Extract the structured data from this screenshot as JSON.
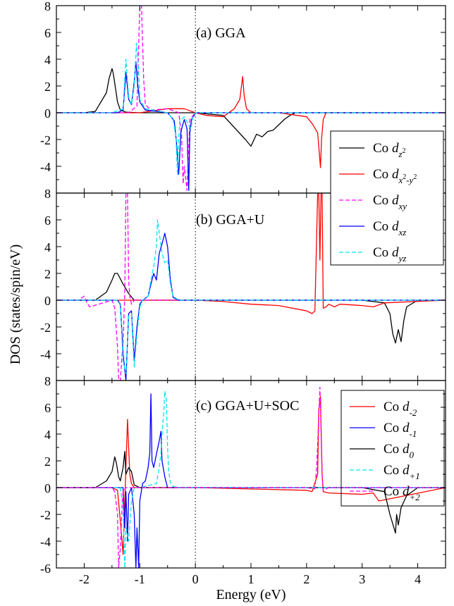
{
  "figure": {
    "ylabel": "DOS (states/spin/eV)",
    "xlabel": "Energy (eV)"
  },
  "chart_data": [
    {
      "type": "line",
      "title": "(a) GGA",
      "xlim": [
        -2.5,
        4.5
      ],
      "ylim": [
        -6,
        8
      ],
      "x_ticks": [
        -2,
        -1,
        0,
        1,
        2,
        3,
        4
      ],
      "y_ticks": [
        -4,
        -2,
        0,
        2,
        4,
        6,
        8
      ],
      "legend_placement": "lower-right",
      "series": [
        {
          "name": "Co d_z²",
          "legend_main": "Co ",
          "legend_d": "d",
          "legend_sub": "z",
          "legend_sup": "2",
          "color": "#000000",
          "dash": "solid",
          "x": [
            -2.5,
            -2.0,
            -1.8,
            -1.6,
            -1.55,
            -1.52,
            -1.5,
            -1.48,
            -1.45,
            -1.4,
            -1.35,
            -1.25,
            -1.0,
            -0.5,
            0.0,
            0.5,
            0.9,
            1.0,
            1.1,
            1.2,
            1.3,
            1.4,
            1.5,
            1.6,
            1.7,
            1.8,
            2.0,
            4.5
          ],
          "y": [
            0,
            0,
            0.1,
            1.5,
            2.6,
            3.0,
            3.3,
            3.0,
            2.2,
            0.8,
            0.2,
            0.05,
            0,
            0,
            0,
            -0.2,
            -2.0,
            -2.5,
            -1.6,
            -1.8,
            -1.4,
            -1.3,
            -0.9,
            -0.5,
            -0.2,
            0,
            0,
            0
          ]
        },
        {
          "name": "Co d_x²-y²",
          "legend_main": "Co ",
          "legend_d": "d",
          "legend_sub": "x",
          "legend_sup": "2",
          "legend_sub2": "-y",
          "legend_sup2": "2",
          "color": "#ff0000",
          "dash": "solid",
          "x": [
            -2.5,
            -1.0,
            -0.5,
            -0.2,
            0.0,
            0.2,
            0.5,
            0.7,
            0.8,
            0.85,
            0.88,
            0.92,
            1.0,
            1.2,
            1.5,
            2.0,
            2.1,
            2.2,
            2.25,
            2.27,
            2.3,
            2.35,
            2.4,
            4.5
          ],
          "y": [
            0,
            0,
            0.3,
            0.3,
            0,
            -0.2,
            -0.3,
            0.3,
            1.0,
            2.7,
            1.2,
            0.3,
            0,
            0,
            0,
            -0.3,
            -0.8,
            -1.5,
            -4.1,
            -2.0,
            -0.5,
            0,
            0,
            0
          ]
        },
        {
          "name": "Co d_xy",
          "legend_main": "Co ",
          "legend_d": "d",
          "legend_sub": "xy",
          "color": "#ff00ff",
          "dash": "dashed",
          "x": [
            -2.5,
            -1.2,
            -1.05,
            -1.0,
            -0.97,
            -0.93,
            -0.9,
            -0.8,
            -0.5,
            -0.3,
            -0.25,
            -0.22,
            -0.2,
            -0.15,
            -0.1,
            0.0,
            0.5,
            4.5
          ],
          "y": [
            0,
            0,
            0.5,
            8.0,
            8.0,
            2.5,
            0.6,
            0.2,
            0.3,
            0,
            -1.5,
            -5.3,
            -4.0,
            -5.8,
            -0.5,
            0,
            0,
            0
          ]
        },
        {
          "name": "Co d_xz",
          "legend_main": "Co ",
          "legend_d": "d",
          "legend_sub": "xz",
          "color": "#0000ff",
          "dash": "solid",
          "x": [
            -2.5,
            -1.4,
            -1.3,
            -1.25,
            -1.2,
            -1.15,
            -1.1,
            -1.07,
            -1.04,
            -1.0,
            -0.9,
            -0.5,
            -0.38,
            -0.34,
            -0.3,
            -0.26,
            -0.2,
            -0.15,
            -0.12,
            -0.1,
            -0.07,
            -0.02,
            0.0,
            4.5
          ],
          "y": [
            0,
            0,
            0.2,
            3.0,
            1.0,
            0.6,
            2.3,
            3.8,
            2.2,
            0.8,
            0.2,
            0,
            -0.6,
            -2.2,
            -4.6,
            -1.4,
            -0.5,
            -1.2,
            -5.8,
            -1.5,
            -0.5,
            -0.2,
            0,
            0
          ]
        },
        {
          "name": "Co d_yz",
          "legend_main": "Co ",
          "legend_d": "d",
          "legend_sub": "yz",
          "color": "#00e5ee",
          "dash": "dashed",
          "x": [
            -2.5,
            -1.5,
            -1.3,
            -1.25,
            -1.2,
            -1.15,
            -1.1,
            -1.06,
            -1.02,
            -1.0,
            -0.9,
            -0.5,
            -0.4,
            -0.35,
            -0.32,
            -0.3,
            -0.28,
            -0.2,
            -0.08,
            -0.05,
            0.0,
            4.5
          ],
          "y": [
            0,
            0,
            0.3,
            4.0,
            1.2,
            0.6,
            2.0,
            5.2,
            3.0,
            1.0,
            0.3,
            0,
            -0.5,
            -1.8,
            -4.7,
            -2.0,
            -0.6,
            -0.3,
            -1.2,
            -0.4,
            0,
            0
          ]
        }
      ]
    },
    {
      "type": "line",
      "title": "(b) GGA+U",
      "xlim": [
        -2.5,
        4.5
      ],
      "ylim": [
        -6,
        8
      ],
      "x_ticks": [
        -2,
        -1,
        0,
        1,
        2,
        3,
        4
      ],
      "y_ticks": [
        -4,
        -2,
        0,
        2,
        4,
        6,
        8
      ],
      "series": [
        {
          "name": "Co d_z²",
          "color": "#000000",
          "dash": "solid",
          "x": [
            -2.5,
            -1.8,
            -1.6,
            -1.5,
            -1.45,
            -1.4,
            -1.3,
            -1.2,
            -1.1,
            0.0,
            3.0,
            3.4,
            3.5,
            3.55,
            3.6,
            3.65,
            3.7,
            3.75,
            3.8,
            4.0,
            4.5
          ],
          "y": [
            0,
            0,
            0.6,
            1.5,
            2.0,
            2.0,
            1.2,
            0.5,
            0,
            0,
            0,
            -0.2,
            -1.0,
            -2.5,
            -3.2,
            -2.2,
            -3.1,
            -1.5,
            -0.5,
            0,
            0
          ]
        },
        {
          "name": "Co d_x²-y²",
          "color": "#ff0000",
          "dash": "solid",
          "x": [
            -2.5,
            0.0,
            0.5,
            1.0,
            1.5,
            2.0,
            2.1,
            2.15,
            2.2,
            2.22,
            2.24,
            2.26,
            2.28,
            2.3,
            2.35,
            2.4,
            2.5,
            2.6,
            3.0,
            3.2,
            3.4,
            4.5
          ],
          "y": [
            0,
            0,
            -0.1,
            -0.3,
            -0.4,
            -0.8,
            -1.0,
            -0.8,
            8.0,
            8.0,
            3.0,
            8.0,
            8.0,
            -0.6,
            -0.5,
            -0.3,
            -0.5,
            -0.3,
            -0.4,
            -0.5,
            -0.2,
            0
          ]
        },
        {
          "name": "Co d_xy",
          "color": "#ff00ff",
          "dash": "dashed",
          "x": [
            -2.5,
            -2.1,
            -2.0,
            -1.95,
            -1.9,
            -1.5,
            -1.45,
            -1.4,
            -1.38,
            -1.35,
            -1.3,
            -1.27,
            -1.25,
            -1.22,
            -1.2,
            -1.18,
            -1.15,
            -1.1,
            -1.0,
            0.0,
            4.5
          ],
          "y": [
            0,
            0,
            0.3,
            -0.2,
            -0.5,
            0,
            -0.6,
            -3.5,
            -6.0,
            -6.0,
            -3.0,
            0.5,
            8.0,
            8.0,
            1.5,
            0.3,
            -0.3,
            0,
            0,
            0,
            0
          ]
        },
        {
          "name": "Co d_xz",
          "color": "#0000ff",
          "dash": "solid",
          "x": [
            -2.5,
            -1.4,
            -1.35,
            -1.3,
            -1.25,
            -1.2,
            -1.15,
            -1.1,
            -1.05,
            -1.0,
            -0.95,
            -0.85,
            -0.8,
            -0.75,
            -0.7,
            -0.65,
            -0.6,
            -0.55,
            -0.5,
            -0.45,
            -0.4,
            -0.3,
            4.5
          ],
          "y": [
            0,
            0,
            -0.3,
            -4.0,
            -6.0,
            -1.0,
            -0.8,
            -4.5,
            -2.0,
            -0.3,
            0,
            0.3,
            1.2,
            2.0,
            1.5,
            3.5,
            4.2,
            5.0,
            4.0,
            1.5,
            0.2,
            0,
            0
          ]
        },
        {
          "name": "Co d_yz",
          "color": "#00e5ee",
          "dash": "dashed",
          "x": [
            -2.5,
            -1.4,
            -1.35,
            -1.3,
            -1.25,
            -1.2,
            -1.15,
            -1.1,
            -1.05,
            -1.0,
            -0.95,
            -0.85,
            -0.8,
            -0.75,
            -0.7,
            -0.68,
            -0.65,
            -0.6,
            -0.55,
            -0.5,
            -0.45,
            -0.4,
            -0.3,
            4.5
          ],
          "y": [
            0,
            0,
            -0.4,
            -4.5,
            -5.5,
            -1.2,
            -1.0,
            -5.0,
            -2.5,
            -0.5,
            0,
            0.3,
            1.5,
            2.5,
            4.0,
            6.0,
            5.0,
            3.5,
            2.8,
            3.0,
            1.2,
            0.3,
            0,
            0
          ]
        }
      ]
    },
    {
      "type": "line",
      "title": "(c) GGA+U+SOC",
      "xlim": [
        -2.5,
        4.5
      ],
      "ylim": [
        -6,
        8
      ],
      "x_ticks": [
        -2,
        -1,
        0,
        1,
        2,
        3,
        4
      ],
      "x_tick_labels": [
        "-2",
        "-1",
        "0",
        "1",
        "2",
        "3",
        "4"
      ],
      "y_ticks": [
        -6,
        -4,
        -2,
        0,
        2,
        4,
        6,
        8
      ],
      "y_tick_labels": [
        "-6",
        "-4",
        "-2",
        "0",
        "2",
        "4",
        "6",
        "8"
      ],
      "legend_placement": "right",
      "series": [
        {
          "name": "Co d_-2",
          "legend_main": "Co ",
          "legend_d": "d",
          "legend_sub": "-2",
          "color": "#ff0000",
          "dash": "solid",
          "x": [
            -2.5,
            -1.5,
            -1.4,
            -1.35,
            -1.3,
            -1.25,
            -1.22,
            -1.2,
            -1.18,
            -1.15,
            -1.1,
            -1.0,
            0.0,
            2.0,
            2.1,
            2.2,
            2.22,
            2.25,
            2.28,
            2.3,
            2.4,
            3.0,
            3.2,
            3.3,
            4.5
          ],
          "y": [
            0,
            0,
            -0.2,
            -2.5,
            -5.0,
            1.5,
            5.1,
            3.0,
            1.0,
            0.3,
            0,
            0,
            0,
            -0.2,
            -0.3,
            1.0,
            5.8,
            6.8,
            1.0,
            -0.3,
            -0.4,
            -0.5,
            -0.4,
            -1.0,
            0
          ]
        },
        {
          "name": "Co d_-1",
          "legend_main": "Co ",
          "legend_d": "d",
          "legend_sub": "-1",
          "color": "#0000ff",
          "dash": "solid",
          "x": [
            -2.5,
            -1.3,
            -1.27,
            -1.25,
            -1.22,
            -1.2,
            -1.15,
            -1.1,
            -1.07,
            -1.05,
            -1.02,
            -1.0,
            -0.95,
            -0.9,
            -0.85,
            -0.82,
            -0.8,
            -0.78,
            -0.75,
            -0.7,
            -0.65,
            -0.62,
            -0.6,
            -0.55,
            -0.5,
            0.0,
            4.5
          ],
          "y": [
            0,
            0,
            -3.0,
            -0.3,
            -4.0,
            -0.5,
            0,
            -2.0,
            -6.0,
            -3.0,
            -6.0,
            -1.0,
            0.3,
            0.5,
            1.5,
            2.6,
            7.0,
            2.0,
            1.5,
            2.5,
            3.5,
            4.2,
            2.0,
            0.8,
            0,
            0,
            0
          ]
        },
        {
          "name": "Co d_0",
          "legend_main": "Co ",
          "legend_d": "d",
          "legend_sub": "0",
          "color": "#000000",
          "dash": "solid",
          "x": [
            -2.5,
            -1.8,
            -1.6,
            -1.5,
            -1.45,
            -1.42,
            -1.38,
            -1.35,
            -1.3,
            -1.27,
            -1.25,
            -1.2,
            -1.15,
            -1.1,
            -1.0,
            0.0,
            3.0,
            3.4,
            3.5,
            3.55,
            3.6,
            3.62,
            3.65,
            3.7,
            3.8,
            4.0,
            4.5
          ],
          "y": [
            0,
            0,
            0.5,
            1.2,
            2.3,
            1.8,
            0.8,
            0.5,
            1.5,
            2.7,
            1.0,
            1.5,
            1.2,
            0.2,
            0,
            0,
            0,
            -0.3,
            -2.0,
            -2.7,
            -3.4,
            -2.0,
            -2.8,
            -1.5,
            -0.6,
            0,
            0
          ]
        },
        {
          "name": "Co d_+1",
          "legend_main": "Co ",
          "legend_d": "d",
          "legend_sub": "+1",
          "color": "#00e5ee",
          "dash": "dashed",
          "x": [
            -2.5,
            -1.35,
            -1.3,
            -1.27,
            -1.25,
            -1.2,
            -1.15,
            -1.1,
            -1.0,
            -0.7,
            -0.65,
            -0.62,
            -0.6,
            -0.57,
            -0.55,
            -0.52,
            -0.5,
            -0.48,
            -0.45,
            -0.4,
            -0.3,
            0.0,
            4.5
          ],
          "y": [
            0,
            0,
            -1.5,
            -6.0,
            -3.0,
            -4.0,
            -1.0,
            0,
            0,
            0.3,
            1.5,
            2.5,
            4.0,
            5.5,
            7.2,
            6.5,
            3.0,
            1.2,
            0.4,
            0.1,
            0,
            0,
            0
          ]
        },
        {
          "name": "Co d_+2",
          "legend_main": "Co ",
          "legend_d": "d",
          "legend_sub": "+2",
          "color": "#ff00ff",
          "dash": "dashed",
          "x": [
            -2.5,
            -1.5,
            -1.45,
            -1.4,
            -1.38,
            -1.35,
            -1.32,
            -1.3,
            -1.25,
            -1.2,
            -1.1,
            0.0,
            2.0,
            2.15,
            2.18,
            2.2,
            2.22,
            2.24,
            2.25,
            2.28,
            2.3,
            2.4,
            4.5
          ],
          "y": [
            0,
            0,
            -0.3,
            -2.0,
            -6.0,
            -4.5,
            -1.5,
            -0.3,
            0,
            0,
            0,
            0,
            0,
            -0.1,
            1.5,
            3.2,
            5.5,
            7.5,
            6.0,
            1.0,
            -0.2,
            0,
            0
          ]
        }
      ]
    }
  ]
}
